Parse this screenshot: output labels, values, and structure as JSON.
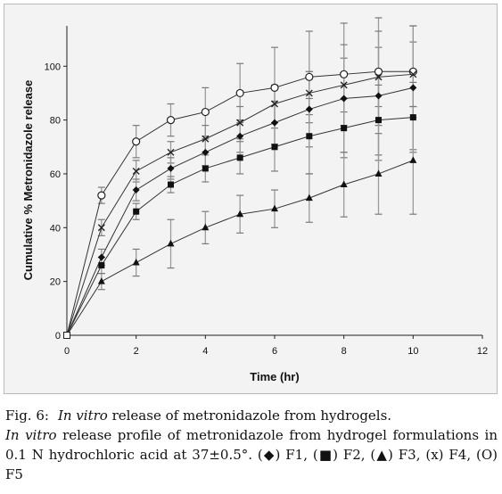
{
  "chart_data": {
    "type": "line",
    "xlabel": "Time (hr)",
    "ylabel": "Cumulative % Metronidazole release",
    "xlim": [
      0,
      12
    ],
    "ylim": [
      0,
      115
    ],
    "xticks": [
      0,
      2,
      4,
      6,
      8,
      10,
      12
    ],
    "yticks": [
      0,
      20,
      40,
      60,
      80,
      100
    ],
    "xtick_labels": [
      "0",
      "2",
      "4",
      "6",
      "8",
      "10",
      "12"
    ],
    "ytick_labels": [
      "0",
      "20",
      "40",
      "60",
      "80",
      "100"
    ],
    "grid": false,
    "legend": "none",
    "x": [
      0,
      1,
      2,
      3,
      4,
      5,
      6,
      7,
      8,
      9,
      10
    ],
    "series": [
      {
        "name": "F5",
        "marker": "circle-open",
        "values": [
          0,
          52,
          72,
          80,
          83,
          90,
          92,
          96,
          97,
          98,
          98
        ],
        "errors": [
          0,
          3,
          6,
          6,
          9,
          11,
          15,
          17,
          19,
          20,
          17
        ]
      },
      {
        "name": "F4",
        "marker": "x",
        "values": [
          0,
          40,
          61,
          68,
          73,
          79,
          86,
          90,
          93,
          96,
          97
        ],
        "errors": [
          0,
          3,
          4,
          4,
          5,
          6,
          7,
          8,
          10,
          11,
          12
        ]
      },
      {
        "name": "F1",
        "marker": "diamond",
        "values": [
          0,
          29,
          54,
          62,
          68,
          74,
          79,
          84,
          88,
          89,
          92
        ],
        "errors": [
          0,
          3,
          4,
          4,
          5,
          6,
          8,
          14,
          20,
          24,
          23
        ]
      },
      {
        "name": "F2",
        "marker": "square",
        "values": [
          0,
          26,
          46,
          56,
          62,
          66,
          70,
          74,
          77,
          80,
          81
        ],
        "errors": [
          0,
          3,
          3,
          3,
          5,
          6,
          9,
          14,
          11,
          13,
          13
        ]
      },
      {
        "name": "F3",
        "marker": "triangle",
        "values": [
          0,
          20,
          27,
          34,
          40,
          45,
          47,
          51,
          56,
          60,
          65
        ],
        "errors": [
          0,
          3,
          5,
          9,
          6,
          7,
          7,
          9,
          12,
          15,
          20
        ]
      }
    ]
  },
  "caption": {
    "label": "Fig. 6:",
    "title_italic": "In vitro",
    "title_rest": " release of metronidazole from hydrogels.",
    "body_italic": "In vitro",
    "body_rest": " release profile of metronidazole from hydrogel formulations in 0.1 N hydrochloric acid at 37±0.5°. (◆) F1, (■) F2, (▲) F3, (x) F4, (O) F5"
  }
}
